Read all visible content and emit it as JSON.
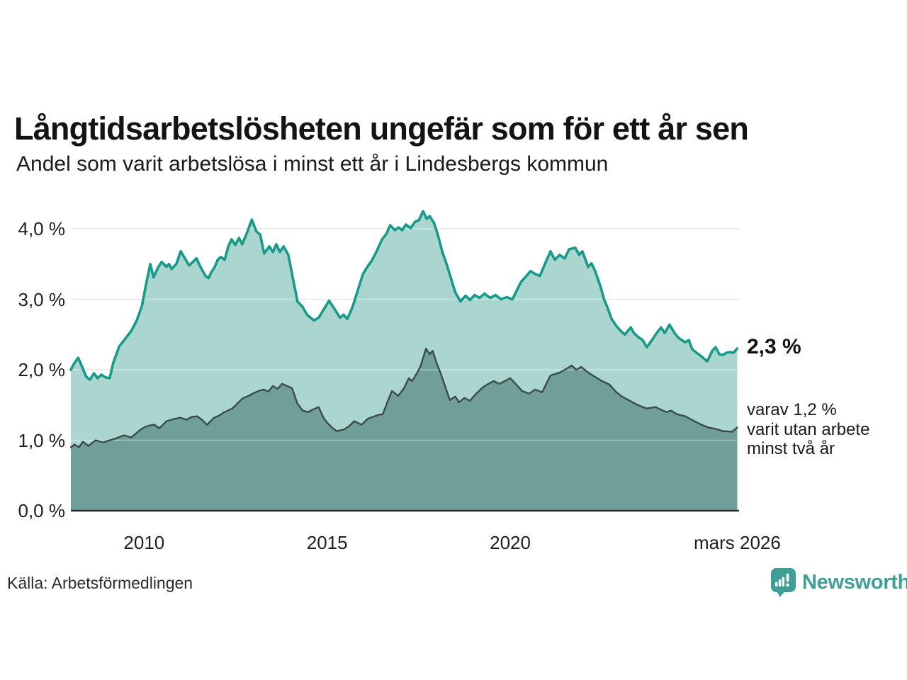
{
  "title": "Långtidsarbetslösheten ungefär som för ett år sen",
  "subtitle": "Andel som varit arbetslösa i minst ett år i Lindesbergs kommun",
  "source": "Källa: Arbetsförmedlingen",
  "branding": {
    "name": "Newsworthy",
    "logo_icon": "bar-chart-speech-bubble-icon",
    "brand_color": "#3f9e96"
  },
  "annotations": {
    "latest_total": "2,3 %",
    "secondary_lines": [
      "varav 1,2 %",
      "varit utan arbete",
      "minst två år"
    ]
  },
  "colors": {
    "teal_line": "#189a8a",
    "light_fill": "#aad6cf",
    "dark_fill": "#6f9f98",
    "dark_line": "#3a4b4a",
    "gridline": "#dcdcdc",
    "gridline_over_fill": "rgba(255,255,255,0.4)",
    "baseline": "#2b2b2b",
    "text": "#1a1a1a"
  },
  "chart_data": {
    "type": "area",
    "title": "Långtidsarbetslösheten ungefär som för ett år sen",
    "subtitle": "Andel som varit arbetslösa i minst ett år i Lindesbergs kommun",
    "xlabel": "",
    "ylabel": "",
    "grid": true,
    "legend": "none",
    "x_domain": [
      2008.0,
      2026.25
    ],
    "y_domain": [
      0,
      4.33
    ],
    "yticks": [
      {
        "value": 0,
        "label": "0,0 %"
      },
      {
        "value": 1,
        "label": "1,0 %"
      },
      {
        "value": 2,
        "label": "2,0 %"
      },
      {
        "value": 3,
        "label": "3,0 %"
      },
      {
        "value": 4,
        "label": "4,0 %"
      }
    ],
    "xticks": [
      {
        "value": 2010,
        "label": "2010"
      },
      {
        "value": 2015,
        "label": "2015"
      },
      {
        "value": 2020,
        "label": "2020"
      },
      {
        "value": 2026.2,
        "label": "mars 2026"
      }
    ],
    "series": [
      {
        "name": "Arbetslösa i minst ett år",
        "latest_value": 2.3,
        "color": "#189a8a",
        "fill": "#aad6cf",
        "points": [
          [
            2008.0,
            2.0
          ],
          [
            2008.08,
            2.08
          ],
          [
            2008.2,
            2.17
          ],
          [
            2008.3,
            2.05
          ],
          [
            2008.42,
            1.9
          ],
          [
            2008.52,
            1.86
          ],
          [
            2008.63,
            1.95
          ],
          [
            2008.73,
            1.88
          ],
          [
            2008.83,
            1.93
          ],
          [
            2008.95,
            1.89
          ],
          [
            2009.06,
            1.88
          ],
          [
            2009.16,
            2.1
          ],
          [
            2009.32,
            2.33
          ],
          [
            2009.5,
            2.45
          ],
          [
            2009.65,
            2.55
          ],
          [
            2009.8,
            2.7
          ],
          [
            2009.94,
            2.9
          ],
          [
            2010.05,
            3.2
          ],
          [
            2010.17,
            3.5
          ],
          [
            2010.26,
            3.31
          ],
          [
            2010.38,
            3.45
          ],
          [
            2010.48,
            3.53
          ],
          [
            2010.61,
            3.46
          ],
          [
            2010.68,
            3.5
          ],
          [
            2010.75,
            3.43
          ],
          [
            2010.88,
            3.5
          ],
          [
            2011.0,
            3.68
          ],
          [
            2011.14,
            3.56
          ],
          [
            2011.23,
            3.48
          ],
          [
            2011.33,
            3.53
          ],
          [
            2011.43,
            3.58
          ],
          [
            2011.55,
            3.45
          ],
          [
            2011.68,
            3.33
          ],
          [
            2011.76,
            3.3
          ],
          [
            2011.83,
            3.38
          ],
          [
            2011.92,
            3.45
          ],
          [
            2012.01,
            3.56
          ],
          [
            2012.1,
            3.6
          ],
          [
            2012.2,
            3.56
          ],
          [
            2012.3,
            3.75
          ],
          [
            2012.39,
            3.85
          ],
          [
            2012.49,
            3.77
          ],
          [
            2012.59,
            3.87
          ],
          [
            2012.68,
            3.78
          ],
          [
            2012.8,
            3.93
          ],
          [
            2012.94,
            4.13
          ],
          [
            2013.07,
            3.96
          ],
          [
            2013.17,
            3.92
          ],
          [
            2013.28,
            3.65
          ],
          [
            2013.42,
            3.75
          ],
          [
            2013.52,
            3.67
          ],
          [
            2013.61,
            3.78
          ],
          [
            2013.71,
            3.67
          ],
          [
            2013.81,
            3.75
          ],
          [
            2013.94,
            3.63
          ],
          [
            2014.06,
            3.31
          ],
          [
            2014.19,
            2.97
          ],
          [
            2014.33,
            2.89
          ],
          [
            2014.45,
            2.78
          ],
          [
            2014.57,
            2.73
          ],
          [
            2014.64,
            2.7
          ],
          [
            2014.77,
            2.74
          ],
          [
            2014.9,
            2.85
          ],
          [
            2015.05,
            2.98
          ],
          [
            2015.18,
            2.88
          ],
          [
            2015.35,
            2.74
          ],
          [
            2015.45,
            2.78
          ],
          [
            2015.55,
            2.72
          ],
          [
            2015.7,
            2.9
          ],
          [
            2015.85,
            3.15
          ],
          [
            2015.98,
            3.36
          ],
          [
            2016.1,
            3.46
          ],
          [
            2016.22,
            3.55
          ],
          [
            2016.35,
            3.68
          ],
          [
            2016.5,
            3.85
          ],
          [
            2016.62,
            3.93
          ],
          [
            2016.72,
            4.05
          ],
          [
            2016.85,
            3.98
          ],
          [
            2016.95,
            4.02
          ],
          [
            2017.05,
            3.98
          ],
          [
            2017.15,
            4.06
          ],
          [
            2017.28,
            4.01
          ],
          [
            2017.4,
            4.1
          ],
          [
            2017.5,
            4.12
          ],
          [
            2017.62,
            4.25
          ],
          [
            2017.72,
            4.14
          ],
          [
            2017.8,
            4.18
          ],
          [
            2017.92,
            4.08
          ],
          [
            2018.03,
            3.9
          ],
          [
            2018.15,
            3.66
          ],
          [
            2018.25,
            3.52
          ],
          [
            2018.35,
            3.35
          ],
          [
            2018.5,
            3.1
          ],
          [
            2018.64,
            2.97
          ],
          [
            2018.78,
            3.05
          ],
          [
            2018.9,
            2.99
          ],
          [
            2019.03,
            3.06
          ],
          [
            2019.16,
            3.02
          ],
          [
            2019.3,
            3.08
          ],
          [
            2019.45,
            3.02
          ],
          [
            2019.6,
            3.06
          ],
          [
            2019.75,
            3.0
          ],
          [
            2019.9,
            3.03
          ],
          [
            2020.06,
            3.0
          ],
          [
            2020.18,
            3.13
          ],
          [
            2020.3,
            3.25
          ],
          [
            2020.44,
            3.33
          ],
          [
            2020.55,
            3.4
          ],
          [
            2020.68,
            3.36
          ],
          [
            2020.81,
            3.33
          ],
          [
            2020.97,
            3.53
          ],
          [
            2021.1,
            3.68
          ],
          [
            2021.22,
            3.56
          ],
          [
            2021.35,
            3.63
          ],
          [
            2021.49,
            3.58
          ],
          [
            2021.61,
            3.71
          ],
          [
            2021.78,
            3.73
          ],
          [
            2021.88,
            3.63
          ],
          [
            2021.97,
            3.68
          ],
          [
            2022.13,
            3.46
          ],
          [
            2022.22,
            3.51
          ],
          [
            2022.32,
            3.4
          ],
          [
            2022.46,
            3.19
          ],
          [
            2022.57,
            2.99
          ],
          [
            2022.65,
            2.89
          ],
          [
            2022.77,
            2.72
          ],
          [
            2022.9,
            2.62
          ],
          [
            2023.04,
            2.54
          ],
          [
            2023.13,
            2.5
          ],
          [
            2023.29,
            2.6
          ],
          [
            2023.38,
            2.52
          ],
          [
            2023.48,
            2.47
          ],
          [
            2023.62,
            2.42
          ],
          [
            2023.73,
            2.32
          ],
          [
            2023.87,
            2.42
          ],
          [
            2024.0,
            2.52
          ],
          [
            2024.12,
            2.6
          ],
          [
            2024.22,
            2.52
          ],
          [
            2024.35,
            2.64
          ],
          [
            2024.49,
            2.52
          ],
          [
            2024.6,
            2.45
          ],
          [
            2024.78,
            2.39
          ],
          [
            2024.88,
            2.42
          ],
          [
            2024.97,
            2.29
          ],
          [
            2025.09,
            2.24
          ],
          [
            2025.22,
            2.19
          ],
          [
            2025.38,
            2.12
          ],
          [
            2025.52,
            2.27
          ],
          [
            2025.61,
            2.32
          ],
          [
            2025.71,
            2.22
          ],
          [
            2025.81,
            2.21
          ],
          [
            2025.9,
            2.24
          ],
          [
            2026.0,
            2.25
          ],
          [
            2026.1,
            2.24
          ],
          [
            2026.2,
            2.3
          ]
        ]
      },
      {
        "name": "Varav utan arbete minst två år",
        "latest_value": 1.2,
        "color": "#3a4b4a",
        "fill": "#6f9f98",
        "points": [
          [
            2008.0,
            0.9
          ],
          [
            2008.1,
            0.94
          ],
          [
            2008.22,
            0.9
          ],
          [
            2008.33,
            0.98
          ],
          [
            2008.48,
            0.92
          ],
          [
            2008.68,
            1.0
          ],
          [
            2008.87,
            0.97
          ],
          [
            2009.0,
            0.99
          ],
          [
            2009.2,
            1.02
          ],
          [
            2009.45,
            1.07
          ],
          [
            2009.65,
            1.04
          ],
          [
            2009.9,
            1.15
          ],
          [
            2010.03,
            1.19
          ],
          [
            2010.16,
            1.21
          ],
          [
            2010.28,
            1.22
          ],
          [
            2010.42,
            1.17
          ],
          [
            2010.61,
            1.27
          ],
          [
            2010.81,
            1.3
          ],
          [
            2011.0,
            1.32
          ],
          [
            2011.15,
            1.29
          ],
          [
            2011.3,
            1.33
          ],
          [
            2011.45,
            1.34
          ],
          [
            2011.58,
            1.29
          ],
          [
            2011.72,
            1.22
          ],
          [
            2011.91,
            1.32
          ],
          [
            2012.05,
            1.35
          ],
          [
            2012.16,
            1.39
          ],
          [
            2012.41,
            1.45
          ],
          [
            2012.68,
            1.59
          ],
          [
            2012.85,
            1.63
          ],
          [
            2013.0,
            1.67
          ],
          [
            2013.13,
            1.7
          ],
          [
            2013.26,
            1.72
          ],
          [
            2013.39,
            1.69
          ],
          [
            2013.52,
            1.77
          ],
          [
            2013.65,
            1.73
          ],
          [
            2013.77,
            1.8
          ],
          [
            2013.9,
            1.77
          ],
          [
            2014.04,
            1.74
          ],
          [
            2014.19,
            1.52
          ],
          [
            2014.33,
            1.42
          ],
          [
            2014.48,
            1.4
          ],
          [
            2014.63,
            1.44
          ],
          [
            2014.77,
            1.47
          ],
          [
            2014.9,
            1.32
          ],
          [
            2015.0,
            1.25
          ],
          [
            2015.13,
            1.18
          ],
          [
            2015.26,
            1.13
          ],
          [
            2015.45,
            1.15
          ],
          [
            2015.6,
            1.2
          ],
          [
            2015.74,
            1.27
          ],
          [
            2015.94,
            1.22
          ],
          [
            2016.1,
            1.3
          ],
          [
            2016.23,
            1.33
          ],
          [
            2016.4,
            1.36
          ],
          [
            2016.52,
            1.37
          ],
          [
            2016.65,
            1.55
          ],
          [
            2016.77,
            1.7
          ],
          [
            2016.94,
            1.63
          ],
          [
            2017.1,
            1.74
          ],
          [
            2017.23,
            1.88
          ],
          [
            2017.32,
            1.84
          ],
          [
            2017.45,
            1.95
          ],
          [
            2017.55,
            2.05
          ],
          [
            2017.7,
            2.3
          ],
          [
            2017.8,
            2.22
          ],
          [
            2017.88,
            2.27
          ],
          [
            2018.0,
            2.08
          ],
          [
            2018.1,
            1.95
          ],
          [
            2018.2,
            1.8
          ],
          [
            2018.35,
            1.57
          ],
          [
            2018.5,
            1.62
          ],
          [
            2018.6,
            1.54
          ],
          [
            2018.75,
            1.6
          ],
          [
            2018.9,
            1.56
          ],
          [
            2019.05,
            1.65
          ],
          [
            2019.25,
            1.75
          ],
          [
            2019.4,
            1.8
          ],
          [
            2019.55,
            1.84
          ],
          [
            2019.7,
            1.8
          ],
          [
            2019.85,
            1.84
          ],
          [
            2020.0,
            1.88
          ],
          [
            2020.15,
            1.8
          ],
          [
            2020.32,
            1.7
          ],
          [
            2020.52,
            1.66
          ],
          [
            2020.68,
            1.72
          ],
          [
            2020.87,
            1.68
          ],
          [
            2021.1,
            1.92
          ],
          [
            2021.35,
            1.96
          ],
          [
            2021.49,
            2.0
          ],
          [
            2021.68,
            2.06
          ],
          [
            2021.8,
            2.0
          ],
          [
            2021.94,
            2.04
          ],
          [
            2022.13,
            1.96
          ],
          [
            2022.32,
            1.9
          ],
          [
            2022.5,
            1.84
          ],
          [
            2022.71,
            1.79
          ],
          [
            2022.9,
            1.68
          ],
          [
            2023.05,
            1.62
          ],
          [
            2023.23,
            1.57
          ],
          [
            2023.48,
            1.5
          ],
          [
            2023.73,
            1.45
          ],
          [
            2023.97,
            1.47
          ],
          [
            2024.13,
            1.43
          ],
          [
            2024.26,
            1.4
          ],
          [
            2024.4,
            1.42
          ],
          [
            2024.55,
            1.37
          ],
          [
            2024.78,
            1.34
          ],
          [
            2024.99,
            1.28
          ],
          [
            2025.22,
            1.22
          ],
          [
            2025.42,
            1.18
          ],
          [
            2025.61,
            1.16
          ],
          [
            2025.81,
            1.13
          ],
          [
            2026.06,
            1.12
          ],
          [
            2026.2,
            1.18
          ]
        ]
      }
    ]
  }
}
